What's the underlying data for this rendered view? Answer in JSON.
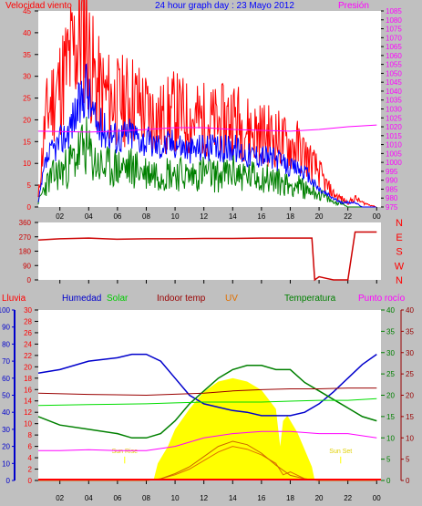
{
  "header": {
    "title": "24 hour graph day : 23 Mayo 2012",
    "left_label": "Velocidad viento",
    "right_label": "Presión"
  },
  "colors": {
    "background": "#c0c0c0",
    "plot_bg": "#ffffff",
    "gust": "#ff0000",
    "wind": "#0000ff",
    "avg_wind": "#008000",
    "pressure": "#ff00ff",
    "direction": "#cc0000",
    "rain": "#ff0000",
    "humidity": "#0000cc",
    "solar": "#00dd00",
    "indoor_temp": "#990000",
    "uv": "#e07000",
    "temperature": "#008000",
    "dewpoint": "#ff00ff",
    "solar_fill": "#ffff00",
    "solar_max": "#cc6600"
  },
  "chart_data": [
    {
      "type": "line",
      "name": "wind",
      "title": "24 hour graph day : 23 Mayo 2012",
      "ylabel": "Velocidad viento",
      "y2label": "Presión",
      "x_ticks": [
        "02",
        "04",
        "06",
        "08",
        "10",
        "12",
        "14",
        "16",
        "18",
        "20",
        "22",
        "00"
      ],
      "x_hours": [
        2,
        4,
        6,
        8,
        10,
        12,
        14,
        16,
        18,
        20,
        22,
        24
      ],
      "xlim": [
        0.5,
        24.3
      ],
      "ylim": [
        0,
        45
      ],
      "y_ticks": [
        0,
        5,
        10,
        15,
        20,
        25,
        30,
        35,
        40,
        45
      ],
      "y2lim": [
        975,
        1085
      ],
      "y2_ticks": [
        975,
        980,
        985,
        990,
        995,
        1000,
        1005,
        1010,
        1015,
        1020,
        1025,
        1030,
        1035,
        1040,
        1045,
        1050,
        1055,
        1060,
        1065,
        1070,
        1075,
        1080,
        1085
      ],
      "series": [
        {
          "name": "gust",
          "x": [
            0.5,
            1,
            1.5,
            2,
            2.5,
            3,
            3.5,
            3.8,
            4,
            4.5,
            5,
            6,
            7,
            8,
            9,
            10,
            11,
            12,
            13,
            14,
            15,
            16,
            17,
            18,
            18.5,
            19,
            19.5,
            20,
            20.5,
            21,
            21.5,
            22,
            22.5,
            23,
            24
          ],
          "y": [
            2,
            20,
            25,
            28,
            32,
            36,
            40,
            42,
            35,
            28,
            26,
            24,
            25,
            22,
            20,
            22,
            20,
            20,
            19,
            21,
            18,
            17,
            16,
            14,
            14,
            12,
            10,
            8,
            5,
            3,
            2,
            1,
            2,
            1,
            0
          ]
        },
        {
          "name": "wind",
          "x": [
            0.5,
            1,
            1.5,
            2,
            2.5,
            3,
            3.5,
            3.8,
            4,
            4.5,
            5,
            6,
            7,
            8,
            9,
            10,
            11,
            12,
            13,
            14,
            15,
            16,
            17,
            18,
            18.5,
            19,
            19.5,
            20,
            20.5,
            21,
            21.5,
            22,
            22.5,
            23,
            24
          ],
          "y": [
            1,
            10,
            13,
            15,
            17,
            21,
            24,
            29,
            25,
            19,
            18,
            16,
            17,
            15,
            14,
            15,
            13,
            14,
            13,
            14,
            12,
            12,
            11,
            9,
            9,
            8,
            6,
            4,
            3,
            2,
            1,
            1,
            1,
            0,
            0
          ]
        },
        {
          "name": "avg_wind",
          "x": [
            0.5,
            1,
            1.5,
            2,
            2.5,
            3,
            3.5,
            3.8,
            4,
            4.5,
            5,
            6,
            7,
            8,
            9,
            10,
            11,
            12,
            13,
            14,
            15,
            16,
            17,
            18,
            18.5,
            19,
            19.5,
            20,
            20.5,
            21,
            21.5,
            22,
            22.5,
            23,
            24
          ],
          "y": [
            1,
            5,
            7,
            8,
            9,
            11,
            13,
            14,
            12,
            10,
            9,
            9,
            9,
            8,
            8,
            8,
            7,
            8,
            7,
            8,
            7,
            7,
            6,
            5,
            5,
            4,
            4,
            3,
            2,
            1,
            1,
            0,
            0,
            0,
            0
          ]
        },
        {
          "name": "pressure",
          "x": [
            0.5,
            2,
            4,
            6,
            8,
            10,
            12,
            14,
            16,
            18,
            20,
            22,
            24
          ],
          "y": [
            1017.5,
            1017.3,
            1017.0,
            1017.5,
            1018.5,
            1019.5,
            1019.5,
            1018.5,
            1018.0,
            1017.5,
            1018.5,
            1020.0,
            1021.0
          ]
        }
      ]
    },
    {
      "type": "line",
      "name": "direction",
      "ylim": [
        0,
        360
      ],
      "y_ticks": [
        0,
        90,
        180,
        270,
        360
      ],
      "y_labels_right": [
        "N",
        "W",
        "S",
        "E",
        "N"
      ],
      "series": [
        {
          "name": "direction",
          "x": [
            0.5,
            2,
            4,
            6,
            8,
            10,
            12,
            14,
            16,
            18,
            19.5,
            19.7,
            20,
            20.5,
            21,
            21.5,
            22,
            22.5,
            24
          ],
          "y": [
            250,
            258,
            262,
            255,
            258,
            258,
            260,
            260,
            262,
            262,
            262,
            0,
            20,
            10,
            0,
            0,
            0,
            300,
            300
          ]
        }
      ]
    },
    {
      "type": "line",
      "name": "temps",
      "legend": [
        "Lluvia",
        "Humedad",
        "Solar",
        "Indoor temp",
        "UV",
        "Temperatura",
        "Punto rocío"
      ],
      "ylim_humidity": [
        0,
        100
      ],
      "y_ticks_humidity": [
        0,
        10,
        20,
        30,
        40,
        50,
        60,
        70,
        80,
        90,
        100
      ],
      "ylim_rain": [
        0,
        30
      ],
      "y_ticks_rain": [
        0,
        2,
        4,
        6,
        8,
        10,
        12,
        14,
        16,
        18,
        20,
        22,
        24,
        26,
        28,
        30
      ],
      "ylim_temp": [
        0,
        40
      ],
      "y_ticks_temp": [
        0,
        5,
        10,
        15,
        20,
        25,
        30,
        35,
        40
      ],
      "series": [
        {
          "name": "humidity",
          "x": [
            0.5,
            2,
            4,
            6,
            7,
            8,
            9,
            10,
            11,
            12,
            13,
            14,
            15,
            16,
            17,
            18,
            19,
            20,
            21,
            22,
            23,
            24
          ],
          "y": [
            63,
            65,
            70,
            72,
            74,
            74,
            70,
            60,
            50,
            45,
            43,
            41,
            40,
            38,
            38,
            38,
            40,
            45,
            52,
            60,
            68,
            74
          ]
        },
        {
          "name": "temperature",
          "x": [
            0.5,
            2,
            4,
            6,
            7,
            8,
            9,
            10,
            11,
            12,
            13,
            14,
            15,
            16,
            17,
            18,
            19,
            20,
            21,
            22,
            23,
            24
          ],
          "y": [
            15,
            13,
            12,
            11,
            10,
            10,
            11,
            14,
            18,
            21,
            24,
            26,
            27,
            27,
            26,
            26,
            23,
            21,
            19,
            17,
            15,
            14
          ]
        },
        {
          "name": "indoor_temp",
          "x": [
            0.5,
            4,
            8,
            12,
            14,
            16,
            18,
            20,
            22,
            24
          ],
          "y": [
            20.5,
            20.2,
            20.0,
            20.5,
            21.0,
            21.3,
            21.5,
            21.5,
            21.7,
            21.7
          ]
        },
        {
          "name": "solar",
          "x": [
            0.5,
            4,
            8,
            10,
            12,
            14,
            16,
            18,
            20,
            22,
            24
          ],
          "y": [
            44,
            44.5,
            45,
            45.5,
            46,
            46,
            46,
            46.5,
            47,
            47,
            48
          ]
        },
        {
          "name": "dewpoint",
          "x": [
            0.5,
            2,
            4,
            6,
            8,
            10,
            12,
            14,
            16,
            18,
            20,
            22,
            24
          ],
          "y": [
            7,
            7,
            7.2,
            7,
            7,
            8,
            10,
            11,
            11.5,
            11.5,
            11,
            11,
            10
          ]
        },
        {
          "name": "uv",
          "x": [
            0.5,
            8,
            9,
            10,
            11,
            12,
            13,
            14,
            15,
            16,
            17,
            17.5,
            18,
            19,
            20,
            24
          ],
          "y": [
            0,
            0,
            0.3,
            1,
            2,
            3.5,
            5,
            6,
            5.5,
            4.5,
            3,
            1,
            1.5,
            0.3,
            0,
            0
          ]
        },
        {
          "name": "solar_fill",
          "x": [
            0.5,
            8.5,
            8.8,
            9.5,
            10,
            11,
            12,
            13,
            14,
            15,
            16,
            17,
            17.3,
            17.5,
            17.8,
            18.5,
            19,
            19.5,
            19.7,
            24
          ],
          "y": [
            0,
            0,
            10,
            20,
            30,
            42,
            52,
            58,
            60,
            58,
            53,
            42,
            20,
            35,
            38,
            28,
            18,
            8,
            0,
            0
          ]
        },
        {
          "name": "solar_max",
          "x": [
            0.5,
            8,
            9,
            10,
            11,
            12,
            13,
            14,
            15,
            16,
            17,
            18,
            19,
            20,
            24
          ],
          "y": [
            0,
            0,
            1,
            4,
            8,
            14,
            20,
            23,
            21,
            16,
            9,
            3,
            1,
            0,
            0
          ]
        }
      ],
      "annotations": [
        {
          "label": "Sun Rise",
          "x": 6.5
        },
        {
          "label": "Sun Set",
          "x": 21.5
        }
      ]
    }
  ]
}
